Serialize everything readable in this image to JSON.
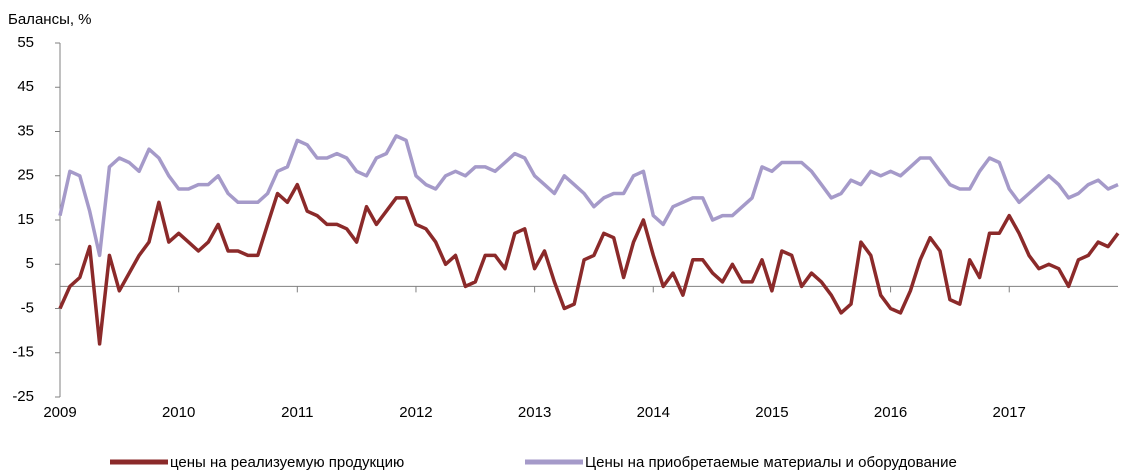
{
  "chart_data": {
    "type": "line",
    "title": "Балансы, %",
    "categories": [
      "2009",
      null,
      null,
      null,
      null,
      null,
      null,
      null,
      null,
      null,
      null,
      null,
      "2010",
      null,
      null,
      null,
      null,
      null,
      null,
      null,
      null,
      null,
      null,
      null,
      "2011",
      null,
      null,
      null,
      null,
      null,
      null,
      null,
      null,
      null,
      null,
      null,
      "2012",
      null,
      null,
      null,
      null,
      null,
      null,
      null,
      null,
      null,
      null,
      null,
      "2013",
      null,
      null,
      null,
      null,
      null,
      null,
      null,
      null,
      null,
      null,
      null,
      "2014",
      null,
      null,
      null,
      null,
      null,
      null,
      null,
      null,
      null,
      null,
      null,
      "2015",
      null,
      null,
      null,
      null,
      null,
      null,
      null,
      null,
      null,
      null,
      null,
      "2016",
      null,
      null,
      null,
      null,
      null,
      null,
      null,
      null,
      null,
      null,
      null,
      "2017",
      null,
      null,
      null,
      null,
      null,
      null,
      null,
      null,
      null,
      null,
      null
    ],
    "series": [
      {
        "name": "цены на реализуемую продукцию",
        "color": "#8b2a2a",
        "values": [
          -5,
          0,
          2,
          9,
          -13,
          7,
          -1,
          3,
          7,
          10,
          19,
          10,
          12,
          10,
          8,
          10,
          14,
          8,
          8,
          7,
          7,
          14,
          21,
          19,
          23,
          17,
          16,
          14,
          14,
          13,
          10,
          18,
          14,
          17,
          20,
          20,
          14,
          13,
          10,
          5,
          7,
          0,
          1,
          7,
          7,
          4,
          12,
          13,
          4,
          8,
          1,
          -5,
          -4,
          6,
          7,
          12,
          11,
          2,
          10,
          15,
          7,
          0,
          3,
          -2,
          6,
          6,
          3,
          1,
          5,
          1,
          1,
          6,
          -1,
          8,
          7,
          0,
          3,
          1,
          -2,
          -6,
          -4,
          10,
          7,
          -2,
          -5,
          -6,
          -1,
          6,
          11,
          8,
          -3,
          -4,
          6,
          2,
          12,
          12,
          16,
          12,
          7,
          4,
          5,
          4,
          0,
          6,
          7,
          10,
          9,
          12
        ]
      },
      {
        "name": "Цены на приобретаемые материалы и оборудование",
        "color": "#a59ac9",
        "values": [
          16,
          26,
          25,
          17,
          7,
          27,
          29,
          28,
          26,
          31,
          29,
          25,
          22,
          22,
          23,
          23,
          25,
          21,
          19,
          19,
          19,
          21,
          26,
          27,
          33,
          32,
          29,
          29,
          30,
          29,
          26,
          25,
          29,
          30,
          34,
          33,
          25,
          23,
          22,
          25,
          26,
          25,
          27,
          27,
          26,
          28,
          30,
          29,
          25,
          23,
          21,
          25,
          23,
          21,
          18,
          20,
          21,
          21,
          25,
          26,
          16,
          14,
          18,
          19,
          20,
          20,
          15,
          16,
          16,
          18,
          20,
          27,
          26,
          28,
          28,
          28,
          26,
          23,
          20,
          21,
          24,
          23,
          26,
          25,
          26,
          25,
          27,
          29,
          29,
          26,
          23,
          22,
          22,
          26,
          29,
          28,
          22,
          19,
          21,
          23,
          25,
          23,
          20,
          21,
          23,
          24,
          22,
          23
        ]
      }
    ],
    "ylim": [
      -25,
      55
    ],
    "yticks": [
      -25,
      -15,
      -5,
      5,
      15,
      25,
      35,
      45,
      55
    ],
    "grid": false
  }
}
